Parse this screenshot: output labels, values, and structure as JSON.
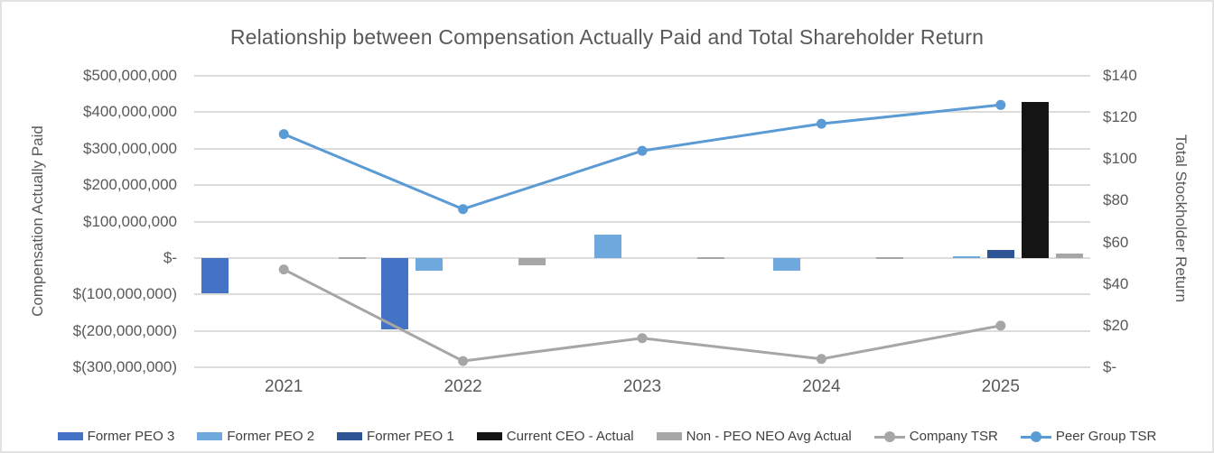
{
  "title": "Relationship between Compensation Actually Paid and Total Shareholder Return",
  "left_axis": {
    "title": "Compensation Actually Paid",
    "tick_labels": [
      "$500,000,000",
      "$400,000,000",
      "$300,000,000",
      "$200,000,000",
      "$100,000,000",
      "$-",
      "$(100,000,000)",
      "$(200,000,000)",
      "$(300,000,000)"
    ],
    "max": 500000000,
    "min": -300000000,
    "step": 100000000
  },
  "right_axis": {
    "title": "Total Stockholder Return",
    "tick_labels": [
      "$140",
      "$120",
      "$100",
      "$80",
      "$60",
      "$40",
      "$20",
      "$-"
    ],
    "max": 140,
    "min": 0,
    "step": 20
  },
  "x_axis": {
    "categories": [
      "2021",
      "2022",
      "2023",
      "2024",
      "2025"
    ]
  },
  "legend": {
    "items": [
      {
        "label": "Former PEO 3",
        "type": "bar",
        "color": "#4472C4"
      },
      {
        "label": "Former PEO 2",
        "type": "bar",
        "color": "#6FA8DC"
      },
      {
        "label": "Former PEO 1",
        "type": "bar",
        "color": "#2F5496"
      },
      {
        "label": "Current CEO - Actual",
        "type": "bar",
        "color": "#141414"
      },
      {
        "label": "Non - PEO NEO Avg Actual",
        "type": "bar",
        "color": "#A6A6A6"
      },
      {
        "label": "Company TSR",
        "type": "line",
        "color": "#A6A6A6"
      },
      {
        "label": "Peer Group TSR",
        "type": "line",
        "color": "#5B9BD5"
      }
    ]
  },
  "chart_data": {
    "type": "combo-bar-line",
    "title": "Relationship between Compensation Actually Paid and Total Shareholder Return",
    "categories": [
      "2021",
      "2022",
      "2023",
      "2024",
      "2025"
    ],
    "grid": true,
    "legend_position": "bottom",
    "left_ylabel": "Compensation Actually Paid",
    "right_ylabel": "Total Stockholder Return",
    "left_ylim": [
      -300000000,
      500000000
    ],
    "right_ylim": [
      0,
      140
    ],
    "bar_series": [
      {
        "name": "Former PEO 3",
        "axis": "left",
        "color": "#4472C4",
        "values": [
          -98000000,
          -195000000,
          0,
          0,
          0
        ]
      },
      {
        "name": "Former PEO 2",
        "axis": "left",
        "color": "#6FA8DC",
        "values": [
          0,
          -36000000,
          63000000,
          -34000000,
          5000000
        ]
      },
      {
        "name": "Former PEO 1",
        "axis": "left",
        "color": "#2F5496",
        "values": [
          0,
          0,
          0,
          0,
          21000000
        ]
      },
      {
        "name": "Current CEO - Actual",
        "axis": "left",
        "color": "#141414",
        "values": [
          0,
          0,
          0,
          0,
          428000000
        ]
      },
      {
        "name": "Non - PEO NEO Avg Actual",
        "axis": "left",
        "color": "#A6A6A6",
        "values": [
          3000000,
          -20000000,
          3000000,
          2000000,
          13000000
        ]
      }
    ],
    "line_series": [
      {
        "name": "Company TSR",
        "axis": "right",
        "color": "#A6A6A6",
        "values": [
          47,
          3,
          14,
          4,
          20
        ]
      },
      {
        "name": "Peer Group TSR",
        "axis": "right",
        "color": "#5B9BD5",
        "values": [
          112,
          76,
          104,
          117,
          126
        ]
      }
    ]
  }
}
